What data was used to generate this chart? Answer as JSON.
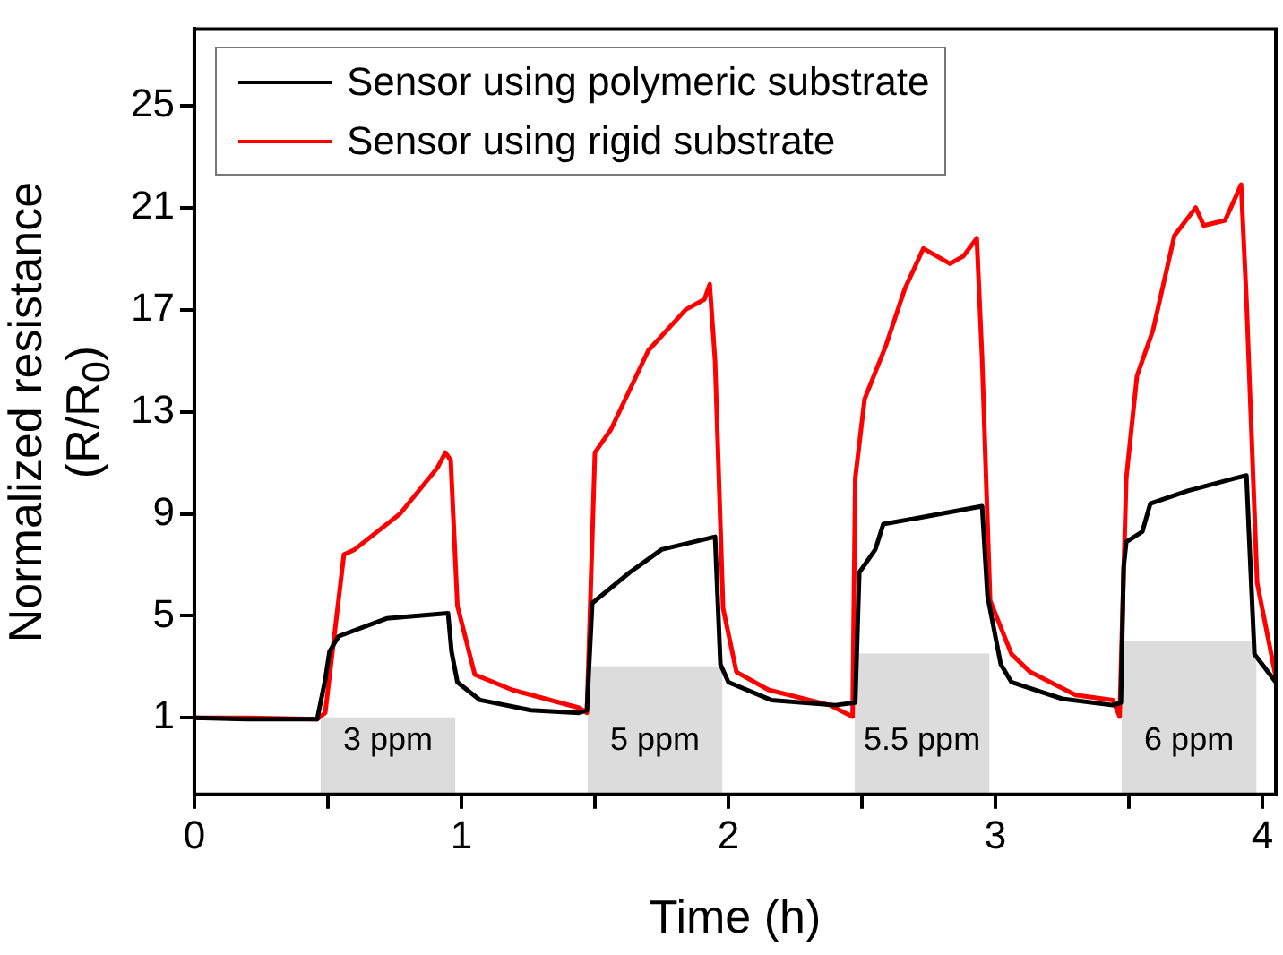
{
  "chart_data": {
    "type": "line",
    "xlabel": "Time (h)",
    "ylabel": "Normalized resistance (R/R$_{0}$)",
    "xlim": [
      0,
      4.05
    ],
    "ylim": [
      -2,
      28
    ],
    "xticks": [
      0,
      {
        "value": 0.5,
        "label": null
      },
      1,
      {
        "value": 1.5,
        "label": null
      },
      2,
      {
        "value": 2.5,
        "label": null
      },
      3,
      {
        "value": 3.5,
        "label": null
      },
      4
    ],
    "yticks": [
      1,
      5,
      9,
      13,
      17,
      21,
      25
    ],
    "grid": false,
    "legend": "top left",
    "series": [
      {
        "name": "Sensor using polymeric substrate",
        "color": "#000000",
        "x": [
          0,
          0.2,
          0.46,
          0.49,
          0.506,
          0.54,
          0.72,
          0.95,
          0.963,
          0.985,
          1.07,
          1.26,
          1.44,
          1.47,
          1.49,
          1.63,
          1.75,
          1.95,
          1.97,
          2.0,
          2.16,
          2.4,
          2.475,
          2.49,
          2.55,
          2.58,
          2.69,
          2.95,
          2.97,
          3.02,
          3.06,
          3.25,
          3.44,
          3.47,
          3.48,
          3.49,
          3.55,
          3.58,
          3.72,
          3.9,
          3.94,
          3.95,
          3.97,
          4.05
        ],
        "values": [
          1.0,
          0.95,
          0.95,
          2.5,
          3.6,
          4.2,
          4.9,
          5.1,
          3.6,
          2.4,
          1.7,
          1.3,
          1.2,
          1.3,
          5.5,
          6.7,
          7.6,
          8.1,
          3.1,
          2.4,
          1.7,
          1.5,
          1.6,
          6.7,
          7.6,
          8.6,
          8.8,
          9.3,
          5.8,
          3.1,
          2.4,
          1.75,
          1.5,
          1.6,
          6.9,
          7.9,
          8.3,
          9.4,
          9.9,
          10.4,
          10.5,
          8.1,
          3.5,
          2.4
        ]
      },
      {
        "name": "Sensor using rigid substrate",
        "color": "#ff0000",
        "x": [
          0,
          0.2,
          0.46,
          0.49,
          0.56,
          0.6,
          0.77,
          0.91,
          0.94,
          0.96,
          0.985,
          1.05,
          1.19,
          1.44,
          1.47,
          1.5,
          1.56,
          1.7,
          1.84,
          1.91,
          1.93,
          1.95,
          1.98,
          2.03,
          2.15,
          2.38,
          2.465,
          2.475,
          2.51,
          2.59,
          2.66,
          2.73,
          2.83,
          2.88,
          2.93,
          2.95,
          2.98,
          3.06,
          3.13,
          3.3,
          3.44,
          3.465,
          3.49,
          3.53,
          3.59,
          3.67,
          3.75,
          3.78,
          3.86,
          3.92,
          3.94,
          3.98,
          4.05
        ],
        "values": [
          1.0,
          1.0,
          0.95,
          1.2,
          7.4,
          7.6,
          9.0,
          10.8,
          11.4,
          11.1,
          5.4,
          2.7,
          2.1,
          1.4,
          1.2,
          11.4,
          12.3,
          15.4,
          17.0,
          17.4,
          18.0,
          15.0,
          5.3,
          2.8,
          2.1,
          1.5,
          1.05,
          10.4,
          13.5,
          15.6,
          17.8,
          19.4,
          18.8,
          19.1,
          19.8,
          15.1,
          5.6,
          3.5,
          2.8,
          1.9,
          1.7,
          1.05,
          10.4,
          14.4,
          16.2,
          19.9,
          21.0,
          20.3,
          20.5,
          21.9,
          17.4,
          6.3,
          2.6
        ]
      },
      {
        "type": "bar",
        "color": "#dcdcdc",
        "x": [
          0.725,
          1.725,
          2.725,
          3.725
        ],
        "base": [
          -2,
          -2,
          -2,
          -2
        ],
        "values": [
          3,
          5,
          5.5,
          6
        ],
        "value_labels": [
          "3 ppm",
          "5 ppm",
          "5.5 ppm",
          "6 ppm"
        ]
      }
    ]
  }
}
